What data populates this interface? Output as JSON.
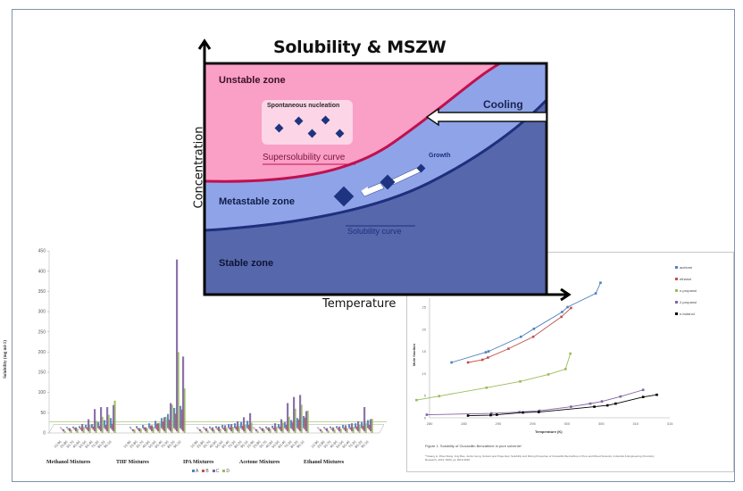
{
  "diagram": {
    "title": "Solubility & MSZW",
    "y_axis_label": "Concentration",
    "x_axis_label": "Temperature",
    "zones": {
      "unstable": "Unstable zone",
      "metastable": "Metastable zone",
      "stable": "Stable zone"
    },
    "labels": {
      "nucleation": "Spontaneous nucleation",
      "supersolubility": "Supersolubility curve",
      "solubility": "Solubility curve",
      "growth": "Growth",
      "cooling": "Cooling"
    },
    "colors": {
      "unstable": "#fa9fc6",
      "metastable": "#8fa4e8",
      "stable": "#5767ac",
      "supersolubility_curve": "#c0104f",
      "solubility_curve": "#1f2f7d",
      "crystal": "#1f2f7d",
      "nucleation_box": "#fcd6e6"
    }
  },
  "chart_data": [
    {
      "type": "bar",
      "title": "",
      "xlabel": "",
      "ylabel": "Solubility (mg ml-1)",
      "ylim": [
        0,
        450
      ],
      "yticks": [
        0,
        50,
        100,
        150,
        200,
        250,
        300,
        350,
        400,
        450
      ],
      "groups": [
        "Methanol Mixtures",
        "THF Mixtures",
        "IPA Mixtures",
        "Acetone Mixtures",
        "Ethanol Mixtures"
      ],
      "categories": [
        "10:90",
        "20:80",
        "30:70",
        "40:60",
        "50:50",
        "60:40",
        "70:30",
        "80:20",
        "90:10"
      ],
      "legend": [
        "A",
        "B",
        "C",
        "D"
      ],
      "series_colors": {
        "A": "#4f81bd",
        "B": "#c0504d",
        "C": "#8064a2",
        "D": "#9bbb59"
      },
      "series": [
        {
          "name": "A",
          "values": [
            [
              2,
              3,
              4,
              5,
              8,
              10,
              15,
              20,
              25
            ],
            [
              3,
              5,
              8,
              12,
              18,
              25,
              35,
              50,
              55
            ],
            [
              2,
              3,
              4,
              5,
              8,
              10,
              12,
              15,
              18
            ],
            [
              2,
              3,
              4,
              6,
              10,
              15,
              20,
              25,
              30
            ],
            [
              2,
              3,
              4,
              5,
              8,
              10,
              12,
              15,
              20
            ]
          ]
        },
        {
          "name": "B",
          "values": [
            [
              2,
              3,
              4,
              5,
              6,
              8,
              10,
              12,
              15
            ],
            [
              2,
              4,
              6,
              10,
              15,
              20,
              25,
              40,
              50
            ],
            [
              2,
              3,
              3,
              4,
              5,
              6,
              8,
              10,
              12
            ],
            [
              2,
              3,
              4,
              5,
              8,
              12,
              18,
              25,
              30
            ],
            [
              2,
              3,
              3,
              4,
              5,
              6,
              8,
              10,
              12
            ]
          ]
        },
        {
          "name": "C",
          "values": [
            [
              5,
              8,
              10,
              18,
              30,
              55,
              60,
              60,
              65
            ],
            [
              5,
              8,
              10,
              15,
              20,
              35,
              70,
              425,
              185
            ],
            [
              5,
              8,
              10,
              12,
              15,
              18,
              25,
              35,
              45
            ],
            [
              5,
              8,
              10,
              20,
              30,
              70,
              85,
              90,
              50
            ],
            [
              5,
              8,
              10,
              12,
              15,
              20,
              25,
              60,
              30
            ]
          ]
        },
        {
          "name": "D",
          "values": [
            [
              5,
              8,
              10,
              15,
              20,
              30,
              40,
              45,
              80
            ],
            [
              8,
              10,
              12,
              15,
              25,
              40,
              70,
              200,
              110
            ],
            [
              5,
              6,
              8,
              10,
              12,
              15,
              18,
              20,
              25
            ],
            [
              5,
              8,
              10,
              15,
              25,
              40,
              60,
              70,
              55
            ],
            [
              5,
              6,
              8,
              10,
              12,
              15,
              20,
              25,
              35
            ]
          ]
        }
      ]
    },
    {
      "type": "line",
      "title": "",
      "caption": "Figure 1. Solubility of Cloxacillin Benzathine in pure solvents*",
      "footnote": "*Yiwang Li, Zhao Wang, Jing Bao, Junbo Gong, Solvent and Properties; Solubility and Mixing Properties of Cloxacillin Benzathine in Pure and Mixed Solvents, Industrial & Engineering Chemistry Research, 2013, 52(8), pp 3019-3026",
      "xlabel": "Temperature (K)",
      "ylabel": "Mole fraction",
      "xlim": [
        280,
        315
      ],
      "ylim": [
        0,
        25
      ],
      "xticks": [
        280,
        285,
        290,
        295,
        300,
        305,
        310,
        315
      ],
      "yticks": [
        0,
        5,
        10,
        15,
        20,
        25
      ],
      "legend_position": "right",
      "series": [
        {
          "name": "acetone",
          "color": "#4f81bd",
          "x": [
            283.2,
            288.2,
            288.6,
            293.3,
            295.2,
            299.3,
            300.1,
            304.2,
            304.9
          ],
          "y": [
            12.5,
            14.8,
            15.0,
            18.3,
            20.1,
            23.9,
            25.0,
            28.1,
            30.5
          ]
        },
        {
          "name": "ethanol",
          "color": "#c0504d",
          "x": [
            285.6,
            287.7,
            288.5,
            291.5,
            295.1,
            299.2,
            300.6
          ],
          "y": [
            12.5,
            13.1,
            13.6,
            15.6,
            18.3,
            22.8,
            24.8
          ]
        },
        {
          "name": "n-propanol",
          "color": "#9bbb59",
          "x": [
            278.1,
            281.4,
            288.3,
            293.2,
            297.3,
            299.8,
            300.5
          ],
          "y": [
            4.0,
            4.9,
            6.8,
            8.2,
            9.8,
            11.0,
            14.5
          ]
        },
        {
          "name": "2-propanol",
          "color": "#8064a2",
          "x": [
            279.6,
            289.0,
            293.1,
            296.0,
            300.6,
            303.4,
            305.1,
            307.8,
            311.1
          ],
          "y": [
            0.7,
            1.0,
            1.3,
            1.6,
            2.5,
            3.2,
            3.7,
            4.8,
            6.3
          ]
        },
        {
          "name": "n-butanol",
          "color": "#000000",
          "x": [
            285.6,
            288.9,
            289.8,
            293.6,
            295.9,
            304.0,
            305.9,
            307.1,
            311.1,
            313.1
          ],
          "y": [
            0.5,
            0.6,
            0.7,
            1.2,
            1.3,
            2.5,
            2.8,
            3.2,
            4.7,
            5.2
          ]
        }
      ]
    }
  ]
}
